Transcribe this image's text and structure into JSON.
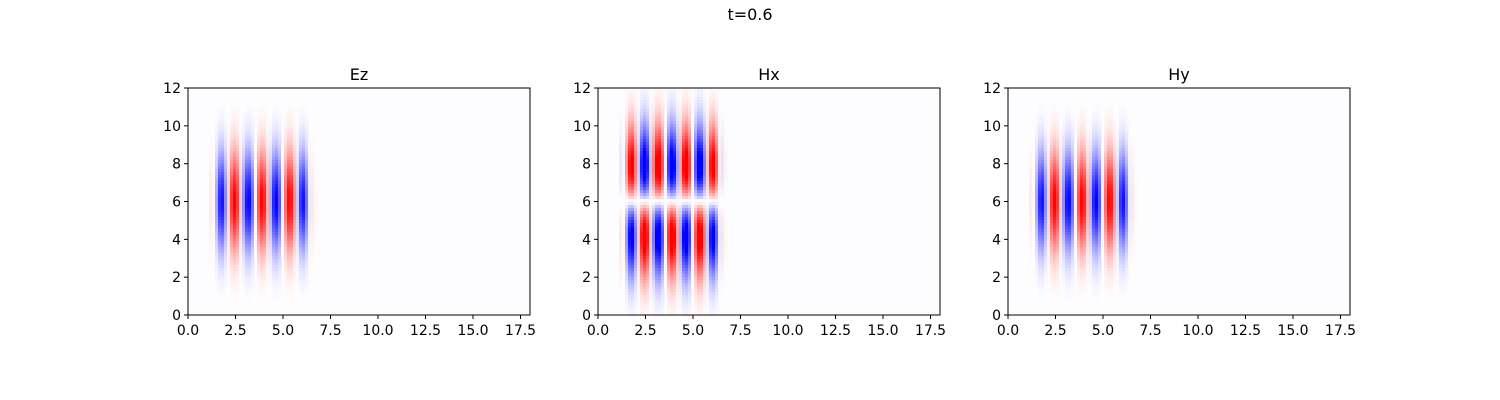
{
  "figure": {
    "suptitle": "t=0.6"
  },
  "chart_data": [
    {
      "type": "heatmap",
      "title": "Ez",
      "xlabel": "",
      "ylabel": "",
      "xlim": [
        0,
        18
      ],
      "ylim": [
        0,
        12
      ],
      "xticks": [
        "0.0",
        "2.5",
        "5.0",
        "7.5",
        "10.0",
        "12.5",
        "15.0",
        "17.5"
      ],
      "yticks": [
        "0",
        "2",
        "4",
        "6",
        "8",
        "10",
        "12"
      ],
      "colormap": "bwr",
      "field": {
        "pattern": "single-lobe",
        "x_center": 3.9,
        "x_halfwidth": 2.6,
        "y_center": 6.0,
        "y_sigma": 1.8,
        "wavelength": 1.45,
        "amplitude": 1.0
      }
    },
    {
      "type": "heatmap",
      "title": "Hx",
      "xlabel": "",
      "ylabel": "",
      "xlim": [
        0,
        18
      ],
      "ylim": [
        0,
        12
      ],
      "xticks": [
        "0.0",
        "2.5",
        "5.0",
        "7.5",
        "10.0",
        "12.5",
        "15.0",
        "17.5"
      ],
      "yticks": [
        "0",
        "2",
        "4",
        "6",
        "8",
        "10",
        "12"
      ],
      "colormap": "bwr",
      "field": {
        "pattern": "antisymmetric-two-lobe",
        "x_center": 3.9,
        "x_halfwidth": 2.6,
        "y_center": 6.0,
        "y_sigma": 1.8,
        "wavelength": 1.45,
        "amplitude": 1.0
      }
    },
    {
      "type": "heatmap",
      "title": "Hy",
      "xlabel": "",
      "ylabel": "",
      "xlim": [
        0,
        18
      ],
      "ylim": [
        0,
        12
      ],
      "xticks": [
        "0.0",
        "2.5",
        "5.0",
        "7.5",
        "10.0",
        "12.5",
        "15.0",
        "17.5"
      ],
      "yticks": [
        "0",
        "2",
        "4",
        "6",
        "8",
        "10",
        "12"
      ],
      "colormap": "bwr",
      "field": {
        "pattern": "single-lobe",
        "x_center": 3.9,
        "x_halfwidth": 2.6,
        "y_center": 6.0,
        "y_sigma": 1.8,
        "wavelength": 1.45,
        "amplitude": 1.0
      }
    }
  ]
}
